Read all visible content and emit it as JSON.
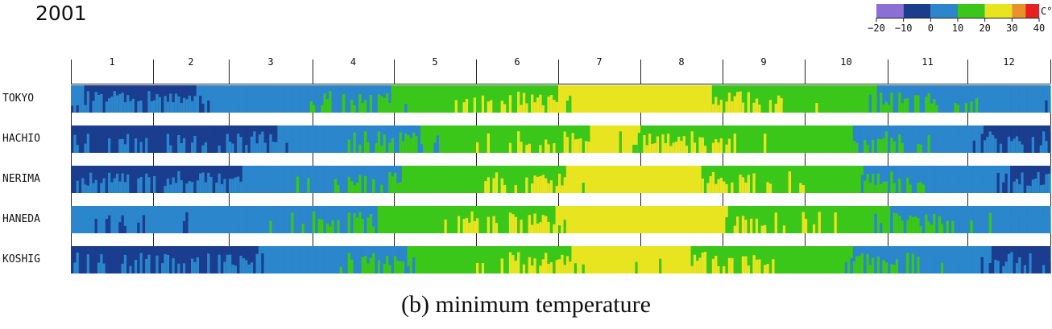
{
  "year": "2001",
  "caption": "(b) minimum temperature",
  "chart_data": {
    "type": "heatmap",
    "title": "2001",
    "subtitle": "(b) minimum temperature",
    "x_categories": [
      "1",
      "2",
      "3",
      "4",
      "5",
      "6",
      "7",
      "8",
      "9",
      "10",
      "11",
      "12"
    ],
    "rows": [
      "TOKYO",
      "HACHIO",
      "NERIMA",
      "HANEDA",
      "KOSHIG"
    ],
    "monthly_min_temp_c": [
      [
        1.2,
        1.8,
        4.5,
        9.5,
        15.0,
        19.5,
        24.5,
        23.5,
        19.5,
        14.5,
        8.0,
        3.5
      ],
      [
        -2.5,
        -1.8,
        1.5,
        7.0,
        13.0,
        18.0,
        22.5,
        21.5,
        18.0,
        12.5,
        5.5,
        0.5
      ],
      [
        -0.5,
        0.2,
        3.0,
        8.5,
        14.5,
        19.0,
        24.0,
        23.0,
        19.0,
        13.5,
        6.5,
        2.0
      ],
      [
        2.0,
        2.5,
        5.5,
        10.5,
        15.5,
        20.0,
        24.5,
        24.0,
        20.5,
        15.5,
        9.0,
        4.5
      ],
      [
        -1.5,
        -1.0,
        2.5,
        8.0,
        14.0,
        19.0,
        23.5,
        22.5,
        18.5,
        12.5,
        5.5,
        1.0
      ]
    ],
    "color_scale": {
      "ticks": [
        "-20",
        "-10",
        "0",
        "10",
        "20",
        "30",
        "40"
      ],
      "unit": "C°",
      "bins": [
        {
          "from": -20,
          "to": -10,
          "color": "#8b6fd6"
        },
        {
          "from": -10,
          "to": 0,
          "color": "#1a3d8f"
        },
        {
          "from": 0,
          "to": 10,
          "color": "#2b86cc"
        },
        {
          "from": 10,
          "to": 20,
          "color": "#3ac71a"
        },
        {
          "from": 20,
          "to": 30,
          "color": "#e8e420"
        },
        {
          "from": 30,
          "to": 35,
          "color": "#e8922a"
        },
        {
          "from": 35,
          "to": 40,
          "color": "#e82020"
        }
      ],
      "placement": "top-right"
    }
  }
}
